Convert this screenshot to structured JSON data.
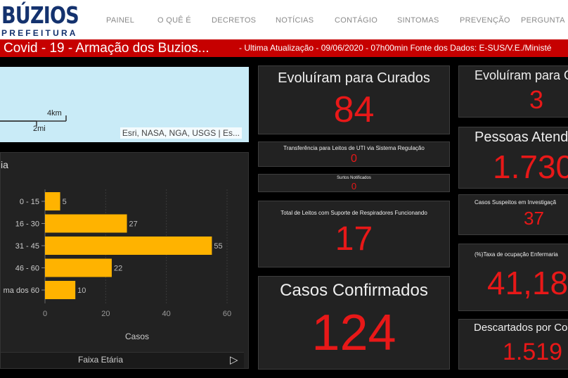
{
  "header": {
    "logo_title": "BÚZIOS",
    "logo_subtitle": "PREFEITURA",
    "nav": [
      "PAINEL",
      "O QUÊ É",
      "DECRETOS",
      "NOTÍCIAS",
      "CONTÁGIO",
      "SINTOMAS",
      "PREVENÇÃO",
      "PERGUNTA"
    ]
  },
  "titlebar": {
    "title": "Covid - 19 - Armação dos Buzios...",
    "subtitle": "- Ultima Atualização - 09/06/2020 - 07h00min Fonte dos Dados: E-SUS/V.E./Ministé"
  },
  "map": {
    "scale_km": "4km",
    "scale_mi": "2mi",
    "attribution": "Esri, NASA, NGA, USGS | Es..."
  },
  "age_chart": {
    "panel_title": "ia",
    "footer_label": "Faixa Etária",
    "chart_data": {
      "type": "bar",
      "orientation": "horizontal",
      "categories": [
        "0 - 15",
        "16 - 30",
        "31 - 45",
        "46 - 60",
        "ma dos 60"
      ],
      "values": [
        5,
        27,
        55,
        22,
        10
      ],
      "xlabel": "Casos",
      "xlim": [
        0,
        60
      ],
      "xticks": [
        0,
        20,
        40,
        60
      ],
      "bar_color": "#ffb300",
      "grid": true
    }
  },
  "cards": {
    "curados": {
      "label": "Evoluíram para Curados",
      "value": "84"
    },
    "uti": {
      "label": "Transferência para Leitos de UTI via Sistema Regulação",
      "value": "0"
    },
    "surtos": {
      "label": "Surtos Notificados",
      "value": "0"
    },
    "leitos": {
      "label": "Total de Leitos com Suporte de Respiradores Funcionando",
      "value": "17"
    },
    "confirmados": {
      "label": "Casos Confirmados",
      "value": "124"
    },
    "obitos": {
      "label": "Evoluíram para Ó",
      "value": "3"
    },
    "atendidas": {
      "label": "Pessoas Atend",
      "value": "1.730"
    },
    "suspeitos": {
      "label": "Casos Suspeitos em Investigaçã",
      "value": "37"
    },
    "ocupacao": {
      "label": "(%)Taxa de ocupação Enfermaria",
      "value": "41,18"
    },
    "descartados": {
      "label": "Descartados por Co",
      "value": "1.519"
    }
  },
  "colors": {
    "accent_red": "#e81818",
    "title_bar": "#c60000",
    "card_bg": "#222222",
    "bar": "#ffb300"
  }
}
